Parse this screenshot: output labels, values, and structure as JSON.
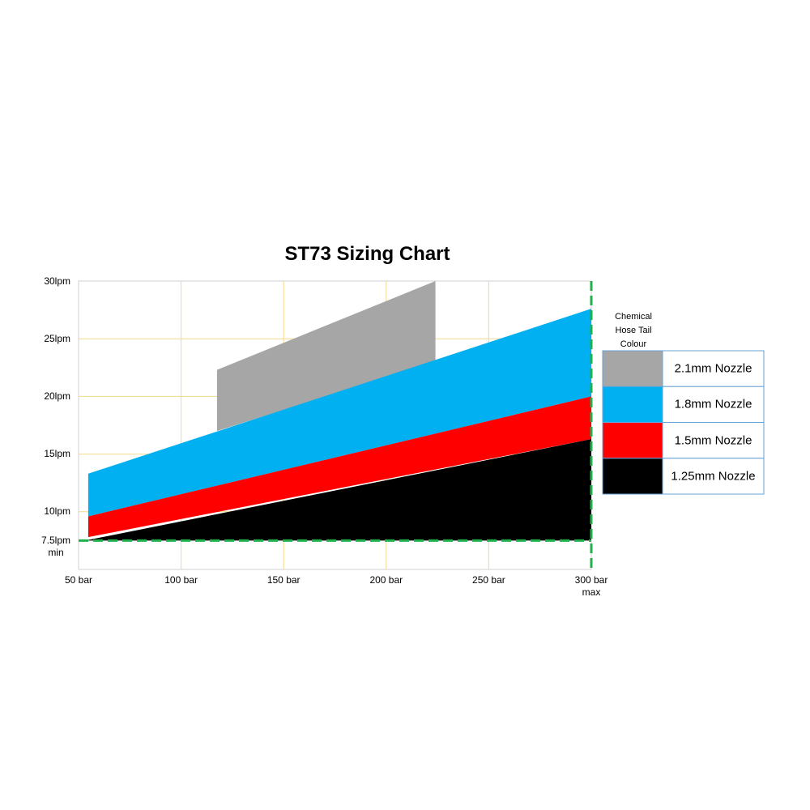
{
  "chart_data": {
    "type": "band-area",
    "title": "ST73 Sizing Chart",
    "legend_title": "Chemical\nHose Tail\nColour",
    "xlim": [
      50,
      300
    ],
    "ylim": [
      5,
      30
    ],
    "xticks": [
      {
        "value": 50,
        "label": "50 bar"
      },
      {
        "value": 100,
        "label": "100 bar"
      },
      {
        "value": 150,
        "label": "150 bar"
      },
      {
        "value": 200,
        "label": "200 bar"
      },
      {
        "value": 250,
        "label": "250 bar"
      },
      {
        "value": 300,
        "label": "300 bar\nmax"
      }
    ],
    "yticks": [
      {
        "value": 7.5,
        "label": "7.5lpm\nmin"
      },
      {
        "value": 10,
        "label": "10lpm"
      },
      {
        "value": 15,
        "label": "15lpm"
      },
      {
        "value": 20,
        "label": "20lpm"
      },
      {
        "value": 25,
        "label": "25lpm"
      },
      {
        "value": 30,
        "label": "30lpm"
      }
    ],
    "grid": true,
    "grid_color": "#f3d98c",
    "reference_lines": {
      "x": 300,
      "y": 7.5,
      "color": "#22b04b"
    },
    "series": [
      {
        "name": "2.1mm Nozzle",
        "color": "#a6a6a6",
        "x": [
          117.5,
          224
        ],
        "low": [
          17.0,
          23.0
        ],
        "high": [
          22.3,
          30
        ]
      },
      {
        "name": "1.8mm Nozzle",
        "color": "#00b0f0",
        "x": [
          54.7,
          300
        ],
        "low": [
          9.6,
          20
        ],
        "high": [
          13.3,
          27.6
        ]
      },
      {
        "name": "1.5mm Nozzle",
        "color": "#ff0000",
        "x": [
          54.7,
          300
        ],
        "low": [
          7.8,
          16.3
        ],
        "high": [
          9.6,
          20
        ]
      },
      {
        "name": "1.25mm Nozzle",
        "color": "#000000",
        "x": [
          53.2,
          300
        ],
        "low": [
          7.5,
          7.5
        ],
        "high": [
          7.5,
          16.3
        ]
      }
    ]
  }
}
